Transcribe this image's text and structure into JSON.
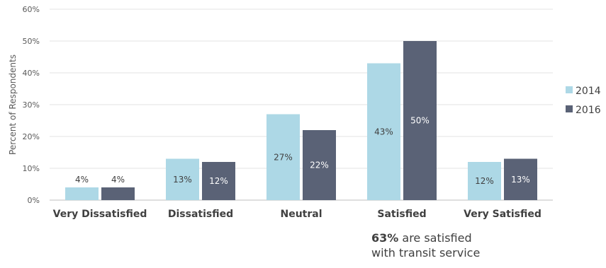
{
  "chart_data": {
    "type": "bar",
    "categories": [
      "Very Dissatisfied",
      "Dissatisfied",
      "Neutral",
      "Satisfied",
      "Very Satisfied"
    ],
    "series": [
      {
        "name": "2014",
        "values": [
          4,
          13,
          27,
          43,
          12
        ],
        "labels": [
          "4%",
          "13%",
          "27%",
          "43%",
          "12%"
        ],
        "color": "#add8e6"
      },
      {
        "name": "2016",
        "values": [
          4,
          12,
          22,
          50,
          13
        ],
        "labels": [
          "4%",
          "12%",
          "22%",
          "50%",
          "13%"
        ],
        "color": "#5a6276"
      }
    ],
    "ylabel": "Percent of Respondents",
    "ylim": [
      0,
      60
    ],
    "yticks": [
      "0%",
      "10%",
      "20%",
      "30%",
      "40%",
      "50%",
      "60%"
    ],
    "grid": true,
    "legend": "right"
  },
  "note": {
    "bold": "63%",
    "line1_rest": " are satisfied",
    "line2": "with transit service"
  }
}
